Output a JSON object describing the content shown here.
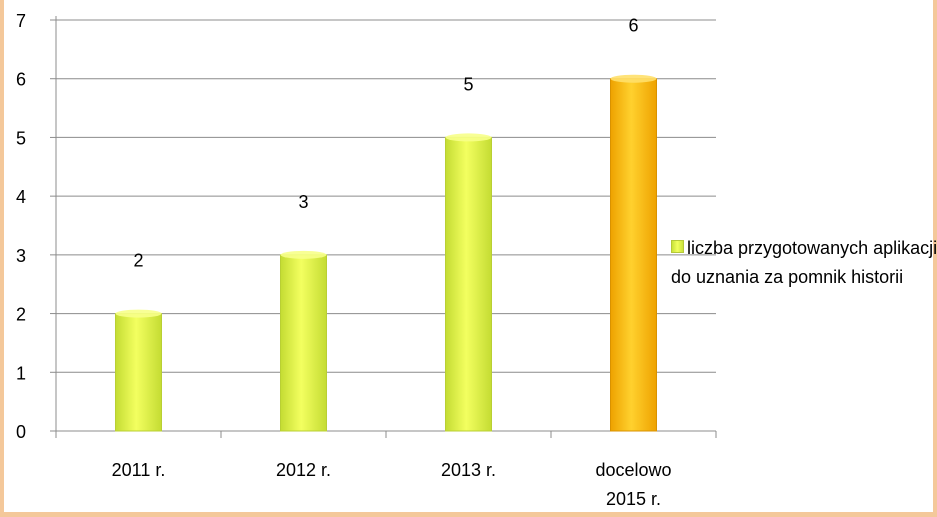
{
  "chart_data": {
    "type": "bar",
    "categories": [
      "2011 r.",
      "2012 r.",
      "2013 r.",
      "docelowo 2015 r."
    ],
    "category_lines": [
      [
        "2011 r."
      ],
      [
        "2012 r."
      ],
      [
        "2013 r."
      ],
      [
        "docelowo",
        "2015 r."
      ]
    ],
    "series": [
      {
        "name": "liczba przygotowanych aplikacji do uznania za pomnik historii",
        "values": [
          2,
          3,
          5,
          6
        ]
      }
    ],
    "ylim": [
      0,
      7
    ],
    "yticks": [
      0,
      1,
      2,
      3,
      4,
      5,
      6,
      7
    ],
    "title": "",
    "xlabel": "",
    "ylabel": "",
    "grid": true,
    "legend_position": "right",
    "colors": {
      "bar_default": "#e0f24a",
      "bar_highlight": "#f7b500",
      "grid": "#8c8c8c"
    },
    "highlight_index": 3
  },
  "legend": {
    "label": "liczba przygotowanych aplikacji do uznania za pomnik historii"
  }
}
